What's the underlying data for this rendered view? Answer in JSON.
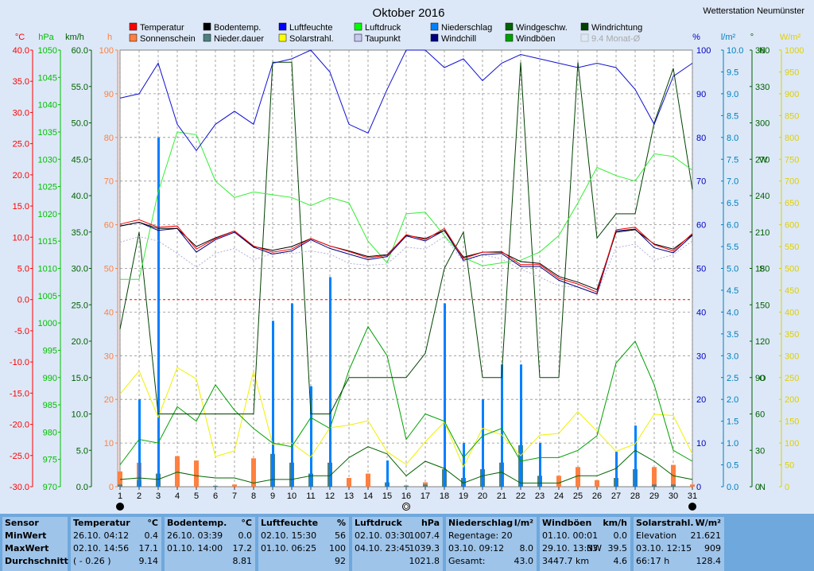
{
  "station": "Wetterstation Neumünster",
  "chart_data": {
    "type": "line",
    "title": "Oktober 2016",
    "legend": [
      {
        "label": "Temperatur",
        "color": "#ff0000"
      },
      {
        "label": "Sonnenschein",
        "color": "#ff8040"
      },
      {
        "label": "Bodentemp.",
        "color": "#000000"
      },
      {
        "label": "Nieder.dauer",
        "color": "#4d8080"
      },
      {
        "label": "Luftfeuchte",
        "color": "#0000ff"
      },
      {
        "label": "Solarstrahl.",
        "color": "#ffff00"
      },
      {
        "label": "Luftdruck",
        "color": "#00ff00"
      },
      {
        "label": "Taupunkt",
        "color": "#c8c8f0"
      },
      {
        "label": "Niederschlag",
        "color": "#0080ff"
      },
      {
        "label": "Windchill",
        "color": "#000080"
      },
      {
        "label": "Windgeschw.",
        "color": "#006400"
      },
      {
        "label": "Windböen",
        "color": "#00a000"
      },
      {
        "label": "Windrichtung",
        "color": "#004000"
      },
      {
        "label": "9.4 Monat-Ø",
        "color": "#c0c0c0"
      }
    ],
    "axes": {
      "celsius": {
        "unit": "°C",
        "ticks": [
          "40.0",
          "35.0",
          "30.0",
          "25.0",
          "20.0",
          "15.0",
          "10.0",
          "5.0",
          "0.0",
          "-5.0",
          "-10.0",
          "-15.0",
          "-20.0",
          "-25.0",
          "-30.0"
        ],
        "min": -30,
        "max": 40,
        "color": "#ff0000"
      },
      "hpa": {
        "unit": "hPa",
        "ticks": [
          "1050",
          "1045",
          "1040",
          "1035",
          "1030",
          "1025",
          "1020",
          "1015",
          "1010",
          "1005",
          "1000",
          "995",
          "990",
          "985",
          "980",
          "975",
          "970"
        ],
        "color": "#00c000"
      },
      "kmh": {
        "unit": "km/h",
        "ticks": [
          "60.0",
          "55.0",
          "50.0",
          "45.0",
          "40.0",
          "35.0",
          "30.0",
          "25.0",
          "20.0",
          "15.0",
          "10.0",
          "5.0",
          "0.0"
        ],
        "color": "#006000"
      },
      "hours": {
        "unit": "h",
        "ticks": [
          "100",
          "90",
          "80",
          "70",
          "60",
          "50",
          "40",
          "30",
          "20",
          "10",
          "0"
        ],
        "color": "#ff8040"
      },
      "percent": {
        "unit": "%",
        "ticks": [
          "100",
          "90",
          "80",
          "70",
          "60",
          "50",
          "40",
          "30",
          "20",
          "10",
          "0"
        ],
        "color": "#0000c0"
      },
      "lm2": {
        "unit": "l/m²",
        "ticks": [
          "10.0",
          "9.5",
          "9.0",
          "8.5",
          "8.0",
          "7.5",
          "7.0",
          "6.5",
          "6.0",
          "5.5",
          "5.0",
          "4.5",
          "4.0",
          "3.5",
          "3.0",
          "2.5",
          "2.0",
          "1.5",
          "1.0",
          "0.5",
          "0.0"
        ],
        "color": "#0080c0"
      },
      "degree": {
        "unit": "°",
        "ticks": [
          "360",
          "330",
          "300",
          "270",
          "240",
          "210",
          "180",
          "150",
          "120",
          "90",
          "60",
          "30",
          "0"
        ],
        "compass": {
          "360": "N",
          "270": "W",
          "180": "S",
          "90": "O",
          "0": "N"
        },
        "color": "#006000"
      },
      "wm2": {
        "unit": "W/m²",
        "ticks": [
          "1000",
          "950",
          "900",
          "850",
          "800",
          "750",
          "700",
          "650",
          "600",
          "550",
          "500",
          "450",
          "400",
          "350",
          "300",
          "250",
          "200",
          "150",
          "100",
          "50",
          "0"
        ],
        "color": "#e0d000"
      }
    },
    "x": [
      "1",
      "2",
      "3",
      "4",
      "5",
      "6",
      "7",
      "8",
      "9",
      "10",
      "11",
      "12",
      "13",
      "14",
      "15",
      "16",
      "17",
      "18",
      "19",
      "20",
      "21",
      "22",
      "23",
      "24",
      "25",
      "26",
      "27",
      "28",
      "29",
      "30",
      "31"
    ],
    "series": [
      {
        "name": "Temperatur",
        "unit": "°C",
        "values": [
          12.1,
          12.8,
          11.6,
          11.8,
          8.1,
          9.8,
          11.0,
          8.6,
          7.6,
          8.1,
          9.8,
          8.6,
          7.7,
          6.7,
          7.1,
          10.4,
          9.6,
          11.4,
          6.6,
          7.6,
          7.7,
          5.6,
          5.6,
          3.4,
          2.5,
          1.2,
          11.2,
          11.6,
          8.8,
          7.8,
          10.6
        ]
      },
      {
        "name": "Bodentemp.",
        "unit": "°C",
        "values": [
          11.8,
          12.4,
          11.4,
          11.4,
          8.5,
          9.9,
          11.0,
          8.5,
          7.9,
          8.5,
          9.8,
          8.6,
          7.8,
          6.9,
          7.2,
          10.3,
          9.8,
          11.1,
          6.8,
          7.6,
          7.6,
          6.1,
          5.8,
          3.7,
          2.8,
          1.6,
          10.8,
          11.2,
          8.9,
          8.1,
          10.4
        ]
      },
      {
        "name": "Taupunkt",
        "unit": "°C",
        "values": [
          9.2,
          10.1,
          9.4,
          7.4,
          5.2,
          7.4,
          8.2,
          6.4,
          7.4,
          7.4,
          7.8,
          7.3,
          5.8,
          5.5,
          5.7,
          8.4,
          8.1,
          10.1,
          6.1,
          7.2,
          6.5,
          4.9,
          3.6,
          2.2,
          2.0,
          1.0,
          8.3,
          8.9,
          6.3,
          7.2,
          9.4
        ]
      },
      {
        "name": "Luftdruck",
        "unit": "hPa",
        "values": [
          1008.0,
          1008.0,
          1024.0,
          1035.0,
          1034.5,
          1026.0,
          1023.0,
          1024.0,
          1023.5,
          1023.0,
          1021.5,
          1023.0,
          1022.0,
          1015.0,
          1011.0,
          1020.0,
          1020.3,
          1016.0,
          1012.0,
          1010.5,
          1011.0,
          1011.5,
          1013.0,
          1016.0,
          1022.0,
          1028.5,
          1027.0,
          1026.0,
          1031.0,
          1030.5,
          1028.0
        ]
      },
      {
        "name": "Luftfeuchte",
        "unit": "%",
        "values": [
          89,
          90,
          97,
          83,
          77,
          83,
          86,
          83,
          97,
          98,
          100,
          95,
          83,
          81,
          91,
          100,
          100,
          96,
          98,
          93,
          97,
          99,
          98,
          97,
          96,
          97,
          96,
          91,
          83,
          94,
          97
        ]
      },
      {
        "name": "Windgeschw.",
        "unit": "km/h",
        "values": [
          1.0,
          1.2,
          1.0,
          2.0,
          1.5,
          1.2,
          1.2,
          0.5,
          1.0,
          1.0,
          1.5,
          1.5,
          4.0,
          5.5,
          4.5,
          1.5,
          3.5,
          2.5,
          0.5,
          1.5,
          2.0,
          0.5,
          0.5,
          0.5,
          1.5,
          1.5,
          2.5,
          5.0,
          3.5,
          1.5,
          1.0
        ]
      },
      {
        "name": "Windböen",
        "unit": "km/h",
        "values": [
          3.0,
          6.5,
          6.0,
          11.0,
          9.0,
          14.0,
          10.5,
          8.0,
          6.0,
          5.5,
          9.5,
          8.0,
          16.0,
          22.0,
          18.0,
          6.5,
          10.0,
          9.0,
          4.0,
          7.0,
          8.0,
          3.5,
          4.0,
          4.0,
          5.0,
          7.0,
          17.0,
          20.0,
          14.0,
          5.0,
          3.5
        ]
      },
      {
        "name": "Solarstrahl.",
        "unit": "W/m²",
        "values": [
          212,
          265,
          159,
          273,
          247,
          69,
          82,
          265,
          97,
          100,
          68,
          135,
          141,
          151,
          80,
          51,
          103,
          148,
          45,
          134,
          119,
          71,
          118,
          122,
          172,
          127,
          81,
          98,
          166,
          163,
          75
        ]
      },
      {
        "name": "Windrichtung",
        "unit": "°",
        "values": [
          130,
          210,
          60,
          60,
          60,
          60,
          60,
          60,
          350,
          350,
          60,
          60,
          90,
          90,
          90,
          90,
          110,
          180,
          210,
          90,
          90,
          350,
          90,
          90,
          350,
          205,
          225,
          225,
          300,
          345,
          245
        ]
      },
      {
        "name": "Windchill",
        "unit": "°C",
        "values": [
          11.8,
          12.4,
          11.1,
          11.4,
          7.6,
          9.6,
          10.8,
          8.4,
          7.3,
          7.8,
          9.6,
          8.2,
          7.3,
          6.4,
          6.9,
          10.2,
          9.4,
          11.1,
          6.3,
          7.2,
          7.4,
          5.3,
          5.3,
          3.1,
          2.0,
          0.9,
          11.0,
          11.3,
          8.3,
          7.5,
          10.3
        ]
      },
      {
        "name": "Niederschlag",
        "unit": "l/m²",
        "values": [
          0.0,
          2.0,
          8.0,
          0.0,
          0.0,
          0.0,
          0.0,
          0.0,
          3.8,
          4.2,
          2.3,
          4.8,
          0.0,
          0.0,
          0.6,
          0.0,
          0.0,
          4.2,
          1.0,
          2.0,
          2.8,
          2.8,
          1.0,
          0.0,
          0.0,
          0.0,
          0.8,
          1.4,
          0.0,
          0.0,
          0.0
        ]
      },
      {
        "name": "Sonnenschein",
        "unit": "h",
        "values": [
          3.5,
          5.5,
          2.5,
          7.0,
          6.0,
          0.2,
          0.5,
          6.5,
          7.5,
          5.0,
          2.5,
          5.0,
          2.0,
          3.0,
          0.0,
          0.3,
          1.0,
          4.0,
          0.0,
          3.5,
          5.5,
          9.0,
          2.0,
          2.5,
          4.5,
          1.5,
          1.5,
          3.0,
          4.5,
          5.0,
          0.5
        ]
      },
      {
        "name": "Nieder.dauer",
        "unit": "h",
        "values": [
          0.5,
          1.5,
          3.0,
          0.0,
          0.0,
          0.2,
          0.0,
          0.0,
          7.5,
          5.5,
          3.0,
          5.5,
          0.0,
          0.0,
          1.0,
          0.2,
          0.5,
          4.0,
          2.0,
          4.0,
          5.5,
          9.5,
          2.5,
          0.0,
          0.0,
          0.0,
          2.0,
          4.0,
          0.5,
          0.5,
          0.0
        ]
      }
    ],
    "moon_phases": [
      {
        "day": "1",
        "phase": "new"
      },
      {
        "day": "16",
        "phase": "full"
      },
      {
        "day": "31",
        "phase": "new"
      }
    ]
  },
  "stats": [
    {
      "header": [
        "Sensor",
        ""
      ],
      "rows": [
        [
          "MinWert",
          "",
          ""
        ],
        [
          "MaxWert",
          "",
          ""
        ],
        [
          "Durchschnitt",
          "",
          ""
        ]
      ]
    },
    {
      "header": [
        "Temperatur",
        "°C"
      ],
      "rows": [
        [
          "26.10.  04:12",
          "",
          "0.4"
        ],
        [
          "02.10.  14:56",
          "",
          "17.1"
        ],
        [
          "( - 0.26 )",
          "",
          "9.14"
        ]
      ]
    },
    {
      "header": [
        "Bodentemp.",
        "°C"
      ],
      "rows": [
        [
          "26.10.  03:39",
          "",
          "0.0"
        ],
        [
          "01.10.  14:00",
          "",
          "17.2"
        ],
        [
          "",
          "",
          "8.81"
        ]
      ]
    },
    {
      "header": [
        "Luftfeuchte",
        "%"
      ],
      "rows": [
        [
          "02.10.  15:30",
          "",
          "56"
        ],
        [
          "01.10.  06:25",
          "",
          "100"
        ],
        [
          "",
          "",
          "92"
        ]
      ]
    },
    {
      "header": [
        "Luftdruck",
        "hPa"
      ],
      "rows": [
        [
          "02.10.  03:30",
          "",
          "1007.4"
        ],
        [
          "04.10.  23:45",
          "",
          "1039.3"
        ],
        [
          "",
          "",
          "1021.8"
        ]
      ]
    },
    {
      "header": [
        "Niederschlag",
        "l/m²"
      ],
      "rows": [
        [
          "Regentage: 20",
          "",
          ""
        ],
        [
          "03.10.  09:12",
          "",
          "8.0"
        ],
        [
          "Gesamt:",
          "",
          "43.0"
        ]
      ]
    },
    {
      "header": [
        "Windböen",
        "km/h"
      ],
      "rows": [
        [
          "01.10.  00:01",
          "",
          "0.0"
        ],
        [
          "29.10.  13:33",
          "NW",
          "39.5"
        ],
        [
          "3447.7 km",
          "",
          "4.6"
        ]
      ]
    },
    {
      "header": [
        "Solarstrahl.",
        "W/m²"
      ],
      "rows": [
        [
          "Elevation",
          "",
          "21.621"
        ],
        [
          "03.10.  12:15",
          "",
          "909"
        ],
        [
          "66:17 h",
          "",
          "128.4"
        ]
      ]
    }
  ]
}
